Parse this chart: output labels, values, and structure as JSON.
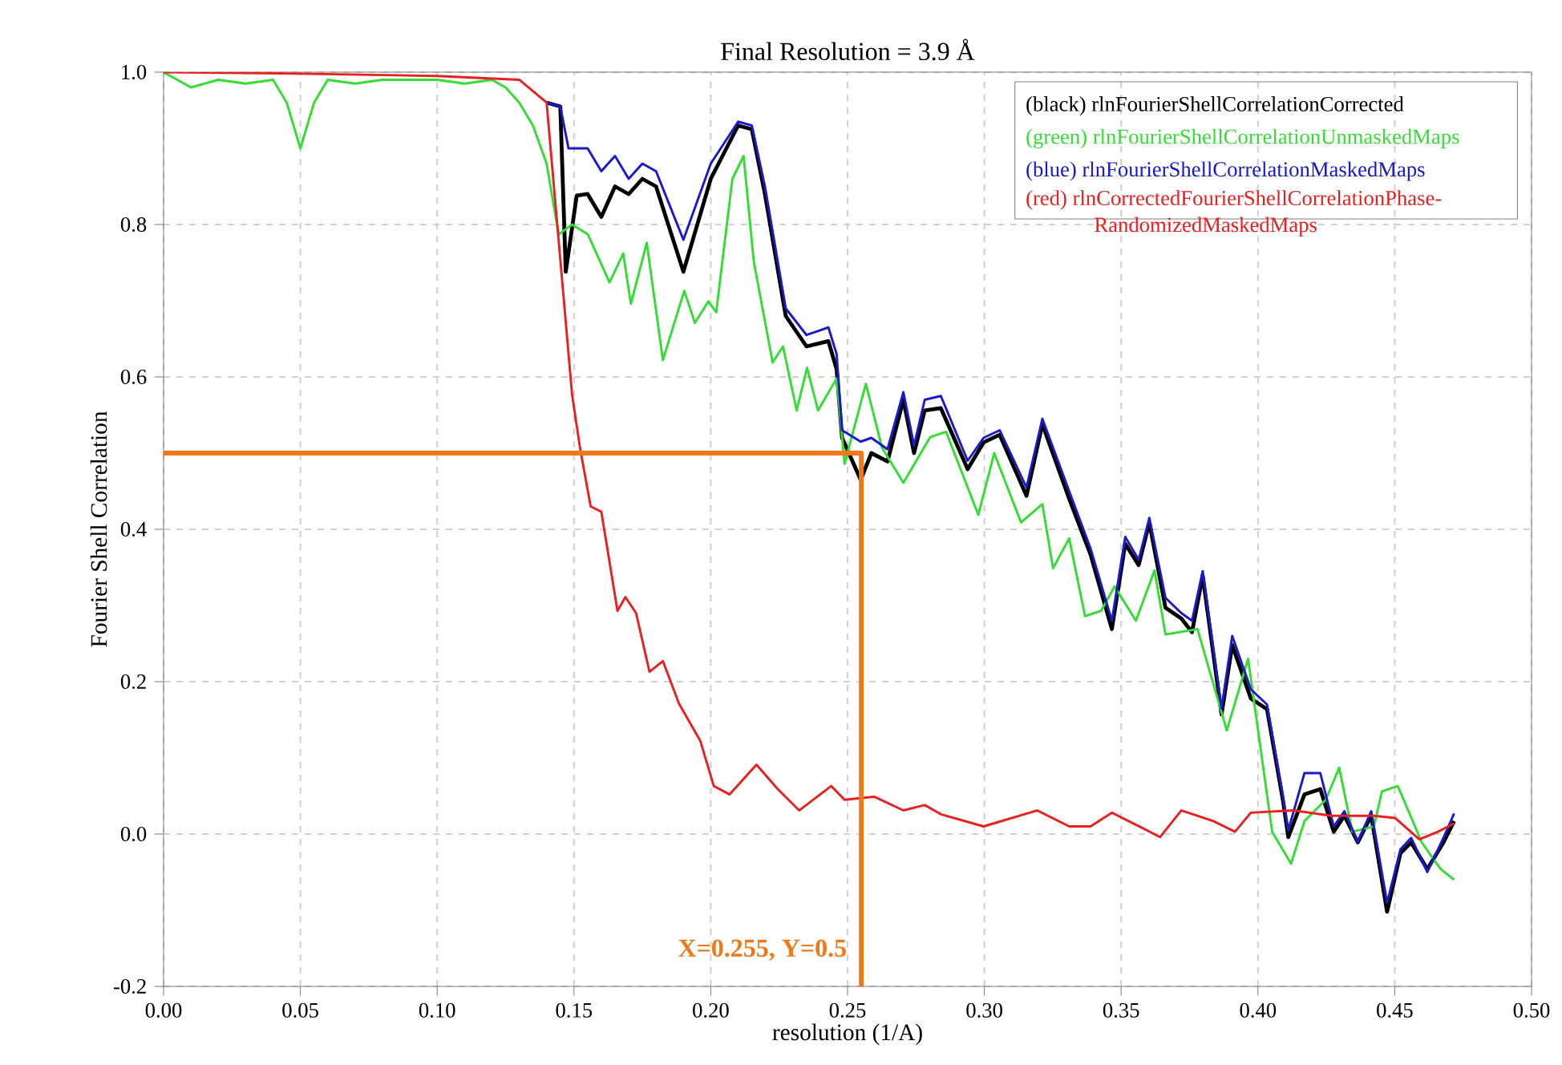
{
  "chart_data": {
    "type": "line",
    "title": "Final Resolution = 3.9 Å",
    "xlabel": "resolution (1/A)",
    "ylabel": "Fourier Shell Correlation",
    "xlim": [
      0,
      0.5
    ],
    "ylim": [
      -0.2,
      1.0
    ],
    "xticks": [
      {
        "value": 0,
        "label": "0.00"
      },
      {
        "value": 0.05,
        "label": "0.05"
      },
      {
        "value": 0.1,
        "label": "0.10"
      },
      {
        "value": 0.15,
        "label": "0.15"
      },
      {
        "value": 0.2,
        "label": "0.20"
      },
      {
        "value": 0.25,
        "label": "0.25"
      },
      {
        "value": 0.3,
        "label": "0.30"
      },
      {
        "value": 0.35,
        "label": "0.35"
      },
      {
        "value": 0.4,
        "label": "0.40"
      },
      {
        "value": 0.45,
        "label": "0.45"
      },
      {
        "value": 0.5,
        "label": "0.50"
      }
    ],
    "yticks": [
      {
        "value": -0.2,
        "label": "-0.2"
      },
      {
        "value": 0,
        "label": "0.0"
      },
      {
        "value": 0.2,
        "label": "0.2"
      },
      {
        "value": 0.4,
        "label": "0.4"
      },
      {
        "value": 0.6,
        "label": "0.6"
      },
      {
        "value": 0.8,
        "label": "0.8"
      },
      {
        "value": 1.0,
        "label": "1.0"
      }
    ],
    "grid": true,
    "legend": "top right",
    "marker": "none",
    "line_style": "solid",
    "annotations": [
      "X=0.255, Y=0.5"
    ],
    "series": [
      {
        "name": "(black) rlnFourierShellCorrelationCorrected",
        "color": "#000000",
        "x": [
          0.14,
          0.145,
          0.147,
          0.151,
          0.155,
          0.16,
          0.165,
          0.17,
          0.175,
          0.18,
          0.19,
          0.2,
          0.21,
          0.215,
          0.2198,
          0.2274,
          0.235,
          0.243,
          0.246,
          0.248,
          0.2548,
          0.2587,
          0.2646,
          0.2704,
          0.2743,
          0.2782,
          0.2841,
          0.2939,
          0.2997,
          0.3056,
          0.3154,
          0.3212,
          0.331,
          0.3388,
          0.3466,
          0.3515,
          0.3564,
          0.3603,
          0.3662,
          0.372,
          0.3759,
          0.3798,
          0.3867,
          0.3906,
          0.3974,
          0.4033,
          0.4091,
          0.4111,
          0.417,
          0.4228,
          0.4277,
          0.4316,
          0.4365,
          0.4414,
          0.4472,
          0.4521,
          0.456,
          0.4619,
          0.4678,
          0.4717
        ],
        "values": [
          0.96,
          0.955,
          0.738,
          0.838,
          0.84,
          0.81,
          0.85,
          0.84,
          0.86,
          0.85,
          0.738,
          0.86,
          0.93,
          0.925,
          0.84,
          0.68,
          0.64,
          0.647,
          0.61,
          0.52,
          0.465,
          0.5,
          0.489,
          0.57,
          0.5,
          0.556,
          0.559,
          0.479,
          0.514,
          0.524,
          0.444,
          0.538,
          0.44,
          0.367,
          0.269,
          0.381,
          0.353,
          0.409,
          0.297,
          0.283,
          0.265,
          0.339,
          0.157,
          0.248,
          0.178,
          0.164,
          0.045,
          -0.004,
          0.052,
          0.059,
          0.003,
          0.024,
          -0.011,
          0.024,
          -0.102,
          -0.025,
          -0.011,
          -0.046,
          -0.011,
          0.017
        ]
      },
      {
        "name": "(green) rlnFourierShellCorrelationUnmaskedMaps",
        "color": "#33dd33",
        "x": [
          0.0,
          0.01,
          0.02,
          0.03,
          0.04,
          0.045,
          0.05,
          0.055,
          0.06,
          0.07,
          0.08,
          0.09,
          0.1,
          0.11,
          0.12,
          0.125,
          0.13,
          0.135,
          0.14,
          0.1444,
          0.1493,
          0.1551,
          0.163,
          0.168,
          0.1708,
          0.1766,
          0.1825,
          0.1903,
          0.1942,
          0.1991,
          0.202,
          0.2079,
          0.212,
          0.2157,
          0.2226,
          0.2264,
          0.2314,
          0.2352,
          0.2392,
          0.246,
          0.2489,
          0.2567,
          0.2626,
          0.2704,
          0.2802,
          0.286,
          0.2978,
          0.3036,
          0.3134,
          0.3212,
          0.3251,
          0.331,
          0.3368,
          0.3427,
          0.3476,
          0.3554,
          0.3622,
          0.3662,
          0.3779,
          0.3886,
          0.3964,
          0.4052,
          0.4121,
          0.417,
          0.4248,
          0.4297,
          0.4345,
          0.4424,
          0.4453,
          0.4511,
          0.4599,
          0.4639,
          0.4668,
          0.4717
        ],
        "values": [
          1.0,
          0.98,
          0.99,
          0.985,
          0.99,
          0.96,
          0.9,
          0.96,
          0.99,
          0.985,
          0.99,
          0.99,
          0.99,
          0.985,
          0.99,
          0.98,
          0.96,
          0.93,
          0.88,
          0.787,
          0.8,
          0.787,
          0.724,
          0.762,
          0.696,
          0.776,
          0.622,
          0.713,
          0.671,
          0.699,
          0.685,
          0.86,
          0.89,
          0.752,
          0.619,
          0.64,
          0.556,
          0.612,
          0.556,
          0.598,
          0.486,
          0.591,
          0.507,
          0.461,
          0.521,
          0.528,
          0.419,
          0.5,
          0.409,
          0.433,
          0.349,
          0.388,
          0.286,
          0.293,
          0.325,
          0.28,
          0.346,
          0.262,
          0.269,
          0.136,
          0.23,
          0.003,
          -0.039,
          0.017,
          0.045,
          0.087,
          0.003,
          0.01,
          0.056,
          0.063,
          -0.011,
          -0.032,
          -0.046,
          -0.06
        ]
      },
      {
        "name": "(blue) rlnFourierShellCorrelationMaskedMaps",
        "color": "#1a1acc",
        "x": [
          0.14,
          0.145,
          0.148,
          0.155,
          0.16,
          0.165,
          0.17,
          0.175,
          0.18,
          0.19,
          0.2,
          0.21,
          0.215,
          0.2198,
          0.2274,
          0.235,
          0.243,
          0.246,
          0.248,
          0.2548,
          0.2587,
          0.2646,
          0.2704,
          0.2743,
          0.2782,
          0.2841,
          0.2939,
          0.2997,
          0.3056,
          0.3154,
          0.3212,
          0.331,
          0.3388,
          0.3466,
          0.3515,
          0.3564,
          0.3603,
          0.3662,
          0.372,
          0.3759,
          0.3798,
          0.3867,
          0.3906,
          0.3974,
          0.4033,
          0.4091,
          0.4111,
          0.417,
          0.4228,
          0.4277,
          0.4316,
          0.4365,
          0.4414,
          0.4472,
          0.4521,
          0.456,
          0.4619,
          0.4678,
          0.4717
        ],
        "values": [
          0.96,
          0.955,
          0.9,
          0.9,
          0.87,
          0.89,
          0.86,
          0.88,
          0.87,
          0.78,
          0.88,
          0.935,
          0.93,
          0.85,
          0.69,
          0.655,
          0.665,
          0.63,
          0.53,
          0.515,
          0.52,
          0.505,
          0.58,
          0.51,
          0.57,
          0.575,
          0.49,
          0.52,
          0.53,
          0.455,
          0.545,
          0.45,
          0.375,
          0.28,
          0.39,
          0.36,
          0.415,
          0.31,
          0.29,
          0.28,
          0.345,
          0.165,
          0.26,
          0.19,
          0.17,
          0.05,
          0.005,
          0.08,
          0.08,
          0.01,
          0.03,
          -0.01,
          0.03,
          -0.09,
          -0.02,
          -0.005,
          -0.05,
          -0.005,
          0.027
        ]
      },
      {
        "name": "(red) rlnCorrectedFourierShellCorrelationPhase-RandomizedMaskedMaps",
        "color": "#e82020",
        "x": [
          0.0,
          0.05,
          0.1,
          0.13,
          0.14,
          0.1434,
          0.1493,
          0.1522,
          0.1561,
          0.16,
          0.1659,
          0.1688,
          0.1727,
          0.1776,
          0.1825,
          0.1884,
          0.1962,
          0.2011,
          0.2069,
          0.2167,
          0.2245,
          0.2323,
          0.244,
          0.2489,
          0.2597,
          0.2704,
          0.2782,
          0.2841,
          0.2997,
          0.3193,
          0.331,
          0.3388,
          0.3466,
          0.3583,
          0.3642,
          0.372,
          0.3837,
          0.3916,
          0.3974,
          0.413,
          0.4267,
          0.4424,
          0.4502,
          0.459,
          0.4658,
          0.4717
        ],
        "values": [
          1.0,
          0.998,
          0.995,
          0.99,
          0.96,
          0.82,
          0.577,
          0.507,
          0.43,
          0.423,
          0.293,
          0.311,
          0.29,
          0.213,
          0.227,
          0.171,
          0.122,
          0.063,
          0.052,
          0.091,
          0.059,
          0.031,
          0.063,
          0.045,
          0.049,
          0.031,
          0.038,
          0.026,
          0.01,
          0.031,
          0.01,
          0.01,
          0.028,
          0.007,
          -0.004,
          0.031,
          0.017,
          0.003,
          0.028,
          0.031,
          0.024,
          0.024,
          0.021,
          -0.007,
          0.003,
          0.014
        ]
      },
      {
        "color": "#f07818",
        "x": [
          0.0,
          0.255,
          0.255
        ],
        "values": [
          0.5,
          0.5,
          -0.2
        ]
      }
    ]
  }
}
